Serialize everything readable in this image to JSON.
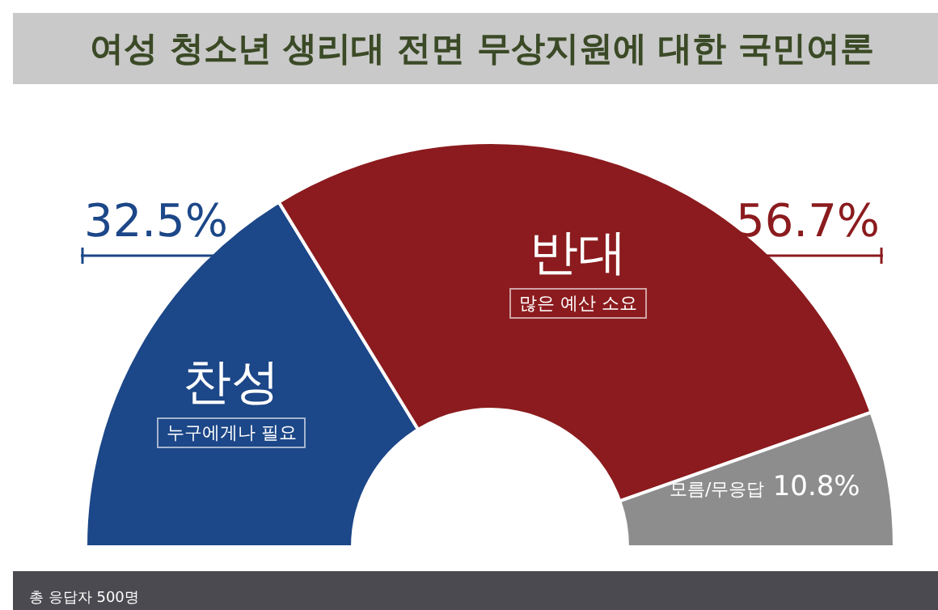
{
  "chart_data": {
    "type": "donut",
    "title": "여성 청소년 생리대 전면 무상지원에 대한 국민여론",
    "categories": [
      "찬성",
      "반대",
      "모름/무응답"
    ],
    "values": [
      32.5,
      56.7,
      10.8
    ],
    "value_labels": [
      "32.5%",
      "56.7%",
      "10.8%"
    ],
    "colors": [
      "#1c4788",
      "#8b1b1e",
      "#8d8d8d"
    ],
    "annotations": [
      "누구에게나 필요",
      "많은 예산 소요",
      "총 응답자 500명"
    ],
    "legend": false
  }
}
